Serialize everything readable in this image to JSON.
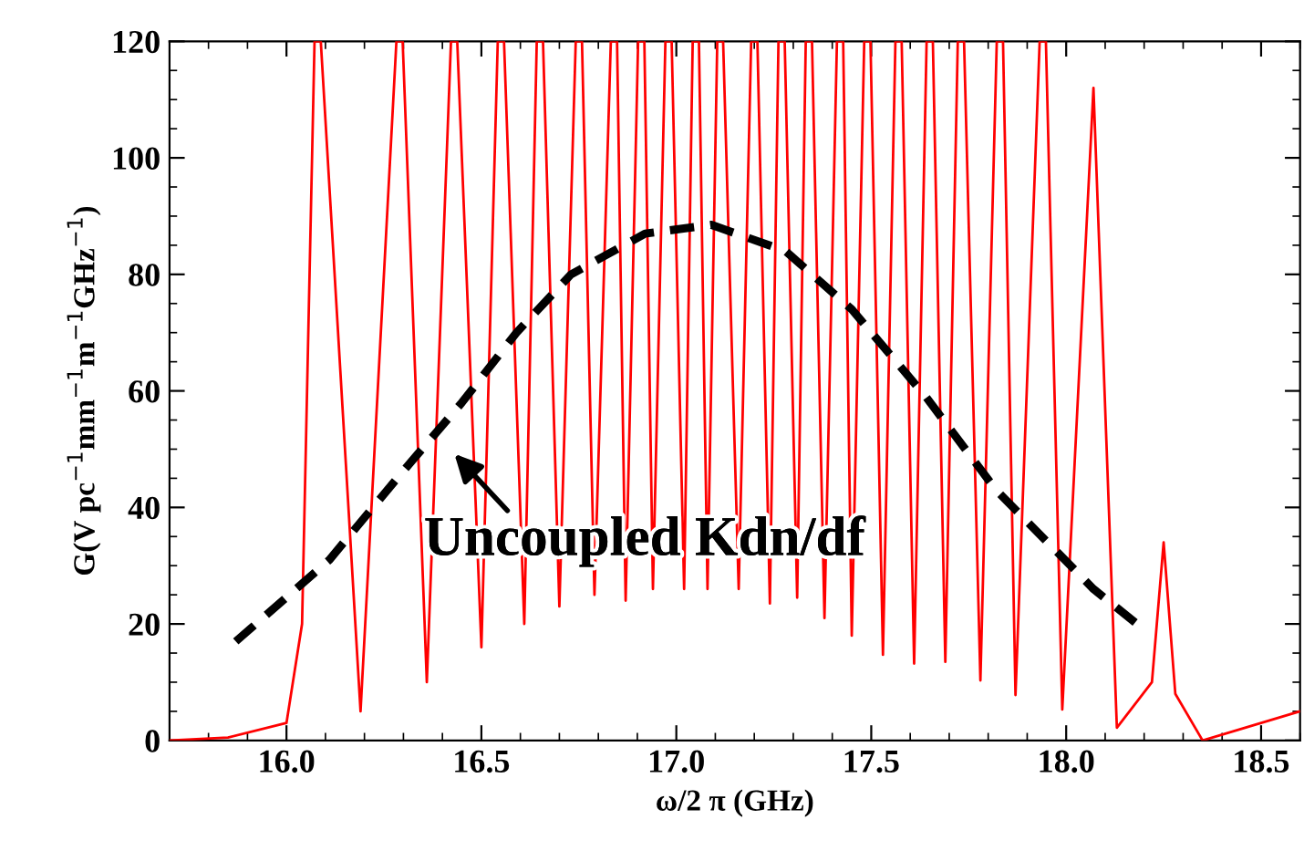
{
  "chart_data": {
    "type": "line",
    "xlabel": "ω/2 π (GHz)",
    "ylabel": "G(V pc$^{−1}$mm$^{−1}$m$^{−1}$GHz$^{−1}$)",
    "xlim": [
      15.7,
      18.6
    ],
    "ylim": [
      0,
      120
    ],
    "xticks": [
      {
        "value": 16.0,
        "label": "16.0"
      },
      {
        "value": 16.5,
        "label": "16.5"
      },
      {
        "value": 17.0,
        "label": "17.0"
      },
      {
        "value": 17.5,
        "label": "17.5"
      },
      {
        "value": 18.0,
        "label": "18.0"
      },
      {
        "value": 18.5,
        "label": "18.5"
      }
    ],
    "yticks": [
      0,
      20,
      40,
      60,
      80,
      100,
      120
    ],
    "grid": false,
    "legend": false,
    "series": [
      {
        "color": "#ff0000",
        "line_style": "solid",
        "x": [
          15.7,
          15.85,
          16.0,
          16.04,
          16.072,
          16.088,
          16.19,
          16.282,
          16.298,
          16.36,
          16.422,
          16.438,
          16.5,
          16.542,
          16.558,
          16.61,
          16.642,
          16.658,
          16.7,
          16.742,
          16.758,
          16.79,
          16.832,
          16.848,
          16.87,
          16.902,
          16.918,
          16.94,
          16.972,
          16.988,
          17.02,
          17.042,
          17.058,
          17.08,
          17.105,
          17.12,
          17.16,
          17.192,
          17.208,
          17.24,
          17.262,
          17.278,
          17.31,
          17.332,
          17.348,
          17.38,
          17.412,
          17.428,
          17.45,
          17.482,
          17.498,
          17.53,
          17.562,
          17.578,
          17.61,
          17.642,
          17.658,
          17.69,
          17.722,
          17.738,
          17.78,
          17.822,
          17.838,
          17.87,
          17.932,
          17.948,
          17.99,
          18.07,
          18.13,
          18.22,
          18.25,
          18.28,
          18.35,
          18.6
        ],
        "values": [
          0,
          0.5,
          3,
          20,
          120,
          120,
          5,
          120,
          120,
          10,
          120,
          120,
          16,
          120,
          120,
          20,
          120,
          120,
          23,
          120,
          120,
          25,
          120,
          120,
          24,
          120,
          120,
          26,
          120,
          120,
          26,
          120,
          120,
          26,
          120,
          120,
          26,
          120,
          120,
          23.5,
          120,
          120,
          24.5,
          120,
          120,
          21,
          120,
          120,
          18,
          120,
          120,
          14.7,
          120,
          120,
          13.2,
          120,
          120,
          13.5,
          120,
          120,
          10.3,
          120,
          120,
          7.8,
          120,
          120,
          5.3,
          112,
          2.2,
          10,
          34,
          8,
          0,
          5
        ]
      },
      {
        "color": "#000000",
        "line_style": "dashed",
        "x": [
          15.87,
          16.11,
          16.29,
          16.45,
          16.59,
          16.73,
          16.92,
          17.09,
          17.28,
          17.45,
          17.64,
          17.82,
          18.07,
          18.2
        ],
        "values": [
          17,
          31,
          45.5,
          58,
          70,
          80,
          87,
          88.5,
          84,
          74,
          59,
          43,
          26,
          19
        ]
      }
    ],
    "annotations": [
      "Uncoupled Kdn/df"
    ]
  }
}
